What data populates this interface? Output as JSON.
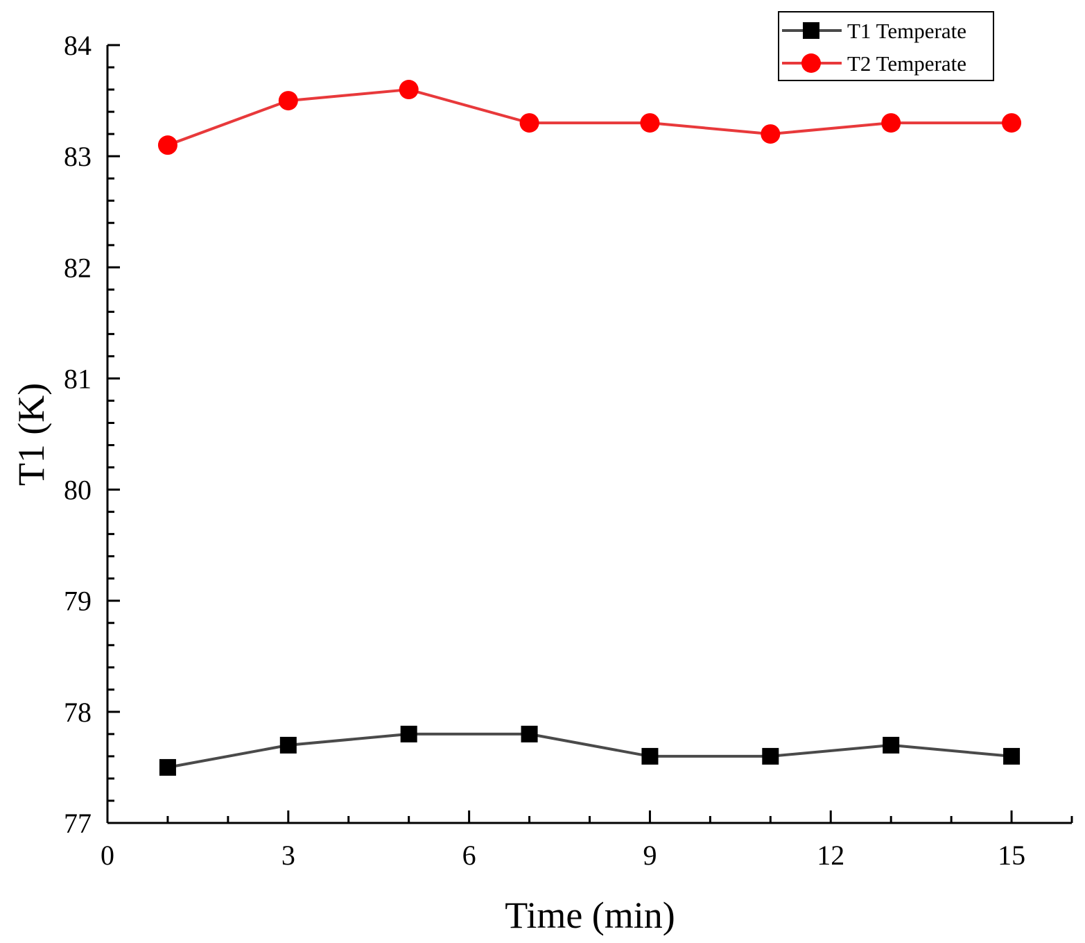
{
  "chart_data": {
    "type": "line",
    "title": "",
    "xlabel": "Time (min)",
    "ylabel": "T1 (K)",
    "xlim": [
      0,
      16
    ],
    "ylim": [
      77,
      84
    ],
    "xticks": [
      0,
      3,
      6,
      9,
      12,
      15
    ],
    "xtick_labels": [
      "0",
      "3",
      "6",
      "9",
      "12",
      "15"
    ],
    "yticks": [
      77,
      78,
      79,
      80,
      81,
      82,
      83,
      84
    ],
    "ytick_labels": [
      "77",
      "78",
      "79",
      "80",
      "81",
      "82",
      "83",
      "84"
    ],
    "x_minor_step": 1,
    "y_minor_step": 0.2,
    "grid": false,
    "legend_position": "top-right",
    "x": [
      1,
      3,
      5,
      7,
      9,
      11,
      13,
      15
    ],
    "series": [
      {
        "name": "T1 Temperate",
        "color": "#4a4a4a",
        "marker": "square",
        "marker_color": "#000000",
        "values": [
          77.5,
          77.7,
          77.8,
          77.8,
          77.6,
          77.6,
          77.7,
          77.6
        ]
      },
      {
        "name": "T2 Temperate",
        "color": "#e8393b",
        "marker": "circle",
        "marker_color": "#ff0000",
        "values": [
          83.1,
          83.5,
          83.6,
          83.3,
          83.3,
          83.2,
          83.3,
          83.3
        ]
      }
    ]
  }
}
